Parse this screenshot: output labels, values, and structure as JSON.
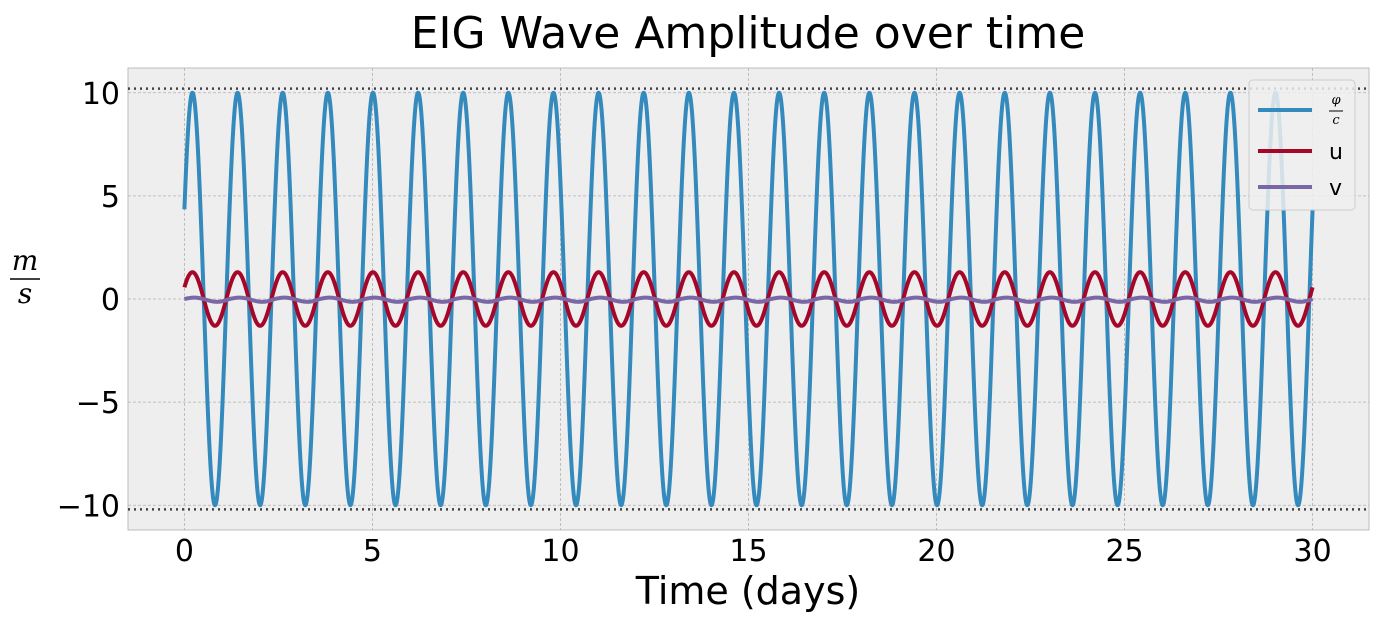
{
  "chart_data": {
    "type": "line",
    "title": "EIG Wave Amplitude over time",
    "xlabel": "Time (days)",
    "ylabel": {
      "numerator": "m",
      "denominator": "s"
    },
    "xlim": [
      -1.5,
      31.5
    ],
    "ylim": [
      -11.2,
      11.2
    ],
    "xticks": [
      0,
      5,
      10,
      15,
      20,
      25,
      30
    ],
    "xtick_labels": [
      "0",
      "5",
      "10",
      "15",
      "20",
      "25",
      "30"
    ],
    "yticks": [
      10,
      5,
      0,
      -5,
      -10
    ],
    "ytick_labels": [
      "10",
      "5",
      "0",
      "−5",
      "−10"
    ],
    "grid": true,
    "legend_position": "top-right",
    "reference_lines": [
      {
        "y": 10.2,
        "style": "dotted",
        "color": "#444444"
      },
      {
        "y": -10.2,
        "style": "dotted",
        "color": "#444444"
      }
    ],
    "series": [
      {
        "name": "φ/c",
        "legend_numerator": "φ",
        "legend_denominator": "c",
        "color": "#348ABD",
        "amplitude": 10.0,
        "period_days": 1.2,
        "phase_rad": 0.45,
        "x_start": 0,
        "x_end": 30
      },
      {
        "name": "u",
        "color": "#A60628",
        "amplitude": 1.3,
        "period_days": 1.2,
        "phase_rad": 0.45,
        "x_start": 0,
        "x_end": 30
      },
      {
        "name": "v",
        "color": "#7A68A6",
        "amplitude": 0.1,
        "period_days": 1.2,
        "phase_rad": 0.0,
        "x_start": 0,
        "x_end": 30
      }
    ]
  }
}
